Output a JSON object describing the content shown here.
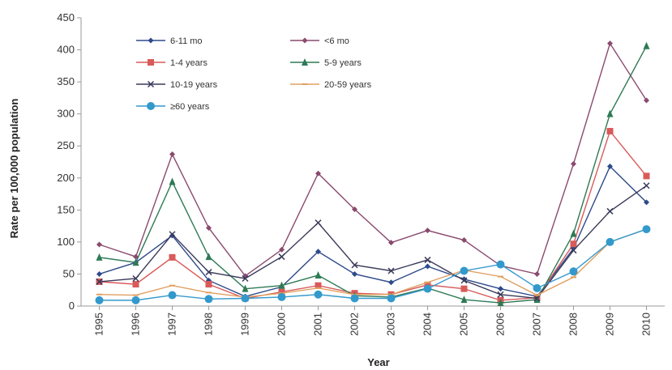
{
  "chart_data": {
    "type": "line",
    "xlabel": "Year",
    "ylabel": "Rate per 100,000 population",
    "ylim": [
      0,
      450
    ],
    "yticks": [
      0,
      50,
      100,
      150,
      200,
      250,
      300,
      350,
      400,
      450
    ],
    "categories": [
      "1995",
      "1996",
      "1997",
      "1998",
      "1999",
      "2000",
      "2001",
      "2002",
      "2003",
      "2004",
      "2005",
      "2006",
      "2007",
      "2008",
      "2009",
      "2010"
    ],
    "grid": false,
    "legend_position": "top-left",
    "series": [
      {
        "name": "6-11 mo",
        "color": "#2e4a8a",
        "marker": "diamond",
        "values": [
          50,
          68,
          110,
          40,
          15,
          30,
          85,
          50,
          37,
          62,
          42,
          27,
          15,
          90,
          218,
          162
        ]
      },
      {
        "name": "<6 mo",
        "color": "#8a4a6e",
        "marker": "diamond",
        "values": [
          96,
          77,
          237,
          122,
          47,
          88,
          207,
          151,
          99,
          118,
          103,
          63,
          50,
          222,
          410,
          321
        ]
      },
      {
        "name": "1-4 years",
        "color": "#d95a5a",
        "marker": "square",
        "values": [
          38,
          34,
          76,
          34,
          12,
          22,
          32,
          20,
          18,
          33,
          27,
          9,
          13,
          97,
          273,
          203
        ]
      },
      {
        "name": "5-9 years",
        "color": "#2e7a55",
        "marker": "triangle",
        "values": [
          76,
          68,
          194,
          77,
          27,
          32,
          48,
          16,
          14,
          28,
          10,
          5,
          10,
          113,
          300,
          406
        ]
      },
      {
        "name": "10-19 years",
        "color": "#3a3a5a",
        "marker": "x",
        "values": [
          38,
          43,
          112,
          53,
          43,
          77,
          130,
          64,
          55,
          72,
          40,
          18,
          12,
          87,
          148,
          188
        ]
      },
      {
        "name": "20-59 years",
        "color": "#e0a060",
        "marker": "dash",
        "values": [
          18,
          17,
          32,
          21,
          14,
          20,
          28,
          18,
          18,
          37,
          56,
          46,
          17,
          45,
          100,
          120
        ]
      },
      {
        "name": "≥60 years",
        "color": "#3399cc",
        "marker": "circle",
        "values": [
          9,
          9,
          17,
          11,
          12,
          14,
          18,
          12,
          12,
          27,
          55,
          65,
          28,
          54,
          100,
          120
        ]
      }
    ]
  }
}
